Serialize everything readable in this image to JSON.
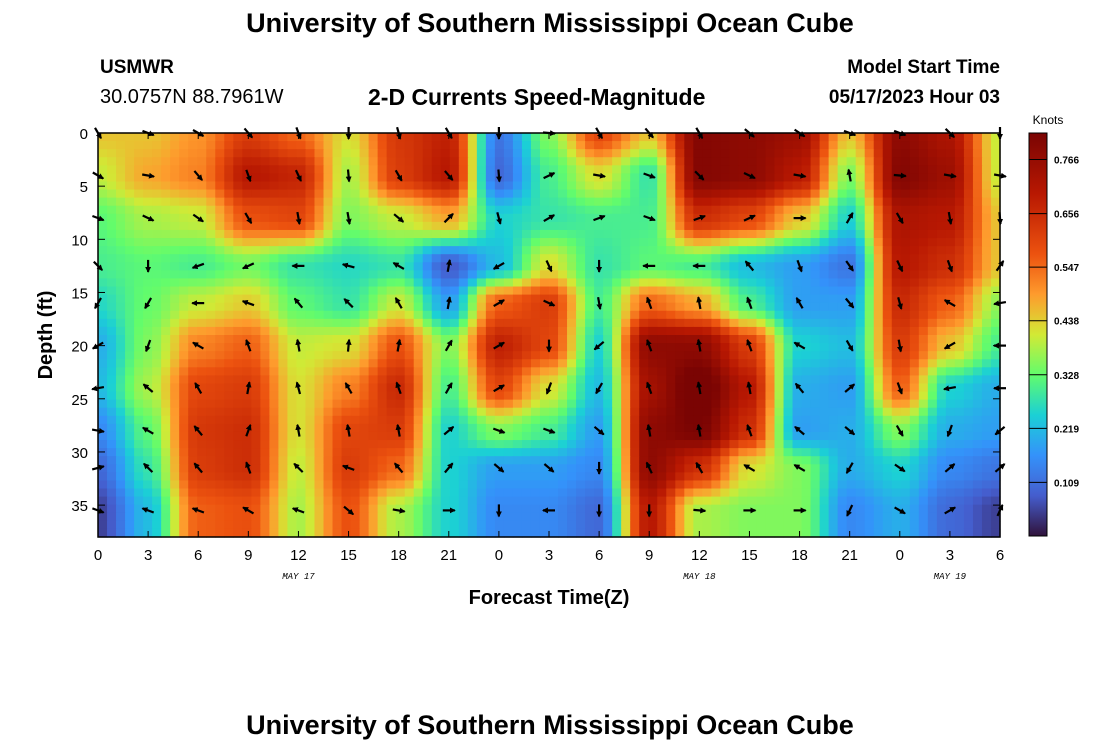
{
  "page": {
    "title_top": "University of Southern Mississippi Ocean Cube",
    "title_bottom": "University of Southern Mississippi Ocean Cube"
  },
  "header": {
    "station": "USMWR",
    "coords": "30.0757N  88.7961W",
    "subtitle": "2-D Currents Speed-Magnitude",
    "model_label": "Model Start Time",
    "model_time": "05/17/2023 Hour 03"
  },
  "chart_data": {
    "type": "heatmap",
    "title": "2-D Currents Speed-Magnitude",
    "xlabel": "Forecast Time(Z)",
    "ylabel": "Depth (ft)",
    "x_ticks": [
      "0",
      "3",
      "6",
      "9",
      "12",
      "15",
      "18",
      "21",
      "0",
      "3",
      "6",
      "9",
      "12",
      "15",
      "18",
      "21",
      "0",
      "3",
      "6"
    ],
    "x_range_hours": [
      0,
      54
    ],
    "date_labels": [
      {
        "label": "MAY 17",
        "hour": 12
      },
      {
        "label": "MAY 18",
        "hour": 36
      },
      {
        "label": "MAY 19",
        "hour": 51
      }
    ],
    "y_ticks": [
      0,
      5,
      10,
      15,
      20,
      25,
      30,
      35
    ],
    "y_range_ft": [
      0,
      38
    ],
    "colorbar": {
      "label": "Knots",
      "ticks": [
        "0.766",
        "0.656",
        "0.547",
        "0.438",
        "0.328",
        "0.219",
        "0.109"
      ],
      "range": [
        0,
        0.82
      ]
    },
    "arrow_hours": [
      0,
      3,
      6,
      9,
      12,
      15,
      18,
      21,
      24,
      27,
      30,
      33,
      36,
      39,
      42,
      45,
      48,
      51,
      54
    ],
    "arrow_depths_ft": [
      0,
      4,
      8,
      12.5,
      16,
      20,
      24,
      28,
      31.5,
      35.5
    ],
    "speed_knots": [
      [
        0.45,
        0.45,
        0.5,
        0.62,
        0.55,
        0.42,
        0.63,
        0.68,
        0.12,
        0.35,
        0.6,
        0.45,
        0.8,
        0.78,
        0.75,
        0.45,
        0.78,
        0.72,
        0.4
      ],
      [
        0.4,
        0.48,
        0.52,
        0.7,
        0.67,
        0.38,
        0.62,
        0.7,
        0.1,
        0.3,
        0.42,
        0.28,
        0.8,
        0.78,
        0.7,
        0.35,
        0.8,
        0.75,
        0.4
      ],
      [
        0.32,
        0.38,
        0.4,
        0.58,
        0.6,
        0.35,
        0.4,
        0.48,
        0.25,
        0.28,
        0.3,
        0.3,
        0.65,
        0.6,
        0.45,
        0.25,
        0.72,
        0.7,
        0.45
      ],
      [
        0.3,
        0.32,
        0.3,
        0.34,
        0.28,
        0.26,
        0.28,
        0.08,
        0.22,
        0.42,
        0.28,
        0.32,
        0.3,
        0.22,
        0.18,
        0.12,
        0.7,
        0.65,
        0.45
      ],
      [
        0.26,
        0.33,
        0.4,
        0.44,
        0.32,
        0.28,
        0.4,
        0.18,
        0.56,
        0.62,
        0.3,
        0.55,
        0.48,
        0.3,
        0.18,
        0.18,
        0.66,
        0.56,
        0.36
      ],
      [
        0.2,
        0.35,
        0.52,
        0.56,
        0.4,
        0.42,
        0.58,
        0.35,
        0.68,
        0.6,
        0.25,
        0.78,
        0.78,
        0.62,
        0.25,
        0.22,
        0.62,
        0.45,
        0.3
      ],
      [
        0.22,
        0.38,
        0.6,
        0.62,
        0.42,
        0.52,
        0.66,
        0.3,
        0.6,
        0.42,
        0.22,
        0.74,
        0.85,
        0.7,
        0.2,
        0.18,
        0.56,
        0.25,
        0.2
      ],
      [
        0.15,
        0.32,
        0.63,
        0.65,
        0.42,
        0.6,
        0.62,
        0.25,
        0.35,
        0.3,
        0.18,
        0.78,
        0.82,
        0.65,
        0.18,
        0.2,
        0.35,
        0.2,
        0.18
      ],
      [
        0.1,
        0.28,
        0.62,
        0.65,
        0.4,
        0.62,
        0.55,
        0.25,
        0.18,
        0.18,
        0.15,
        0.78,
        0.65,
        0.42,
        0.35,
        0.2,
        0.25,
        0.15,
        0.12
      ],
      [
        0.05,
        0.22,
        0.56,
        0.58,
        0.38,
        0.58,
        0.38,
        0.25,
        0.15,
        0.15,
        0.1,
        0.7,
        0.38,
        0.35,
        0.35,
        0.15,
        0.2,
        0.1,
        0.05
      ]
    ],
    "direction_deg": [
      [
        150,
        110,
        120,
        140,
        160,
        180,
        165,
        150,
        180,
        95,
        150,
        140,
        150,
        130,
        125,
        110,
        110,
        135,
        180
      ],
      [
        120,
        100,
        140,
        160,
        155,
        175,
        150,
        140,
        175,
        65,
        100,
        110,
        135,
        115,
        100,
        350,
        95,
        100,
        100
      ],
      [
        110,
        115,
        125,
        150,
        170,
        170,
        130,
        45,
        165,
        60,
        70,
        110,
        70,
        65,
        90,
        30,
        150,
        170,
        175
      ],
      [
        135,
        180,
        250,
        245,
        270,
        285,
        300,
        10,
        240,
        155,
        180,
        270,
        270,
        320,
        160,
        145,
        155,
        160,
        35
      ],
      [
        210,
        210,
        270,
        290,
        320,
        315,
        330,
        10,
        60,
        115,
        170,
        340,
        350,
        340,
        330,
        140,
        165,
        300,
        260
      ],
      [
        240,
        200,
        300,
        340,
        350,
        5,
        10,
        30,
        60,
        180,
        230,
        340,
        350,
        340,
        300,
        150,
        170,
        240,
        270
      ],
      [
        260,
        310,
        330,
        10,
        345,
        330,
        340,
        30,
        60,
        200,
        210,
        340,
        350,
        350,
        320,
        50,
        160,
        260,
        270
      ],
      [
        100,
        300,
        320,
        20,
        350,
        350,
        350,
        50,
        110,
        110,
        130,
        350,
        350,
        340,
        310,
        130,
        150,
        200,
        230
      ],
      [
        75,
        315,
        320,
        340,
        315,
        290,
        320,
        40,
        130,
        130,
        180,
        335,
        330,
        300,
        300,
        210,
        125,
        50,
        50
      ],
      [
        110,
        290,
        290,
        300,
        290,
        130,
        100,
        90,
        180,
        270,
        180,
        180,
        95,
        90,
        90,
        205,
        120,
        60,
        25
      ]
    ]
  }
}
